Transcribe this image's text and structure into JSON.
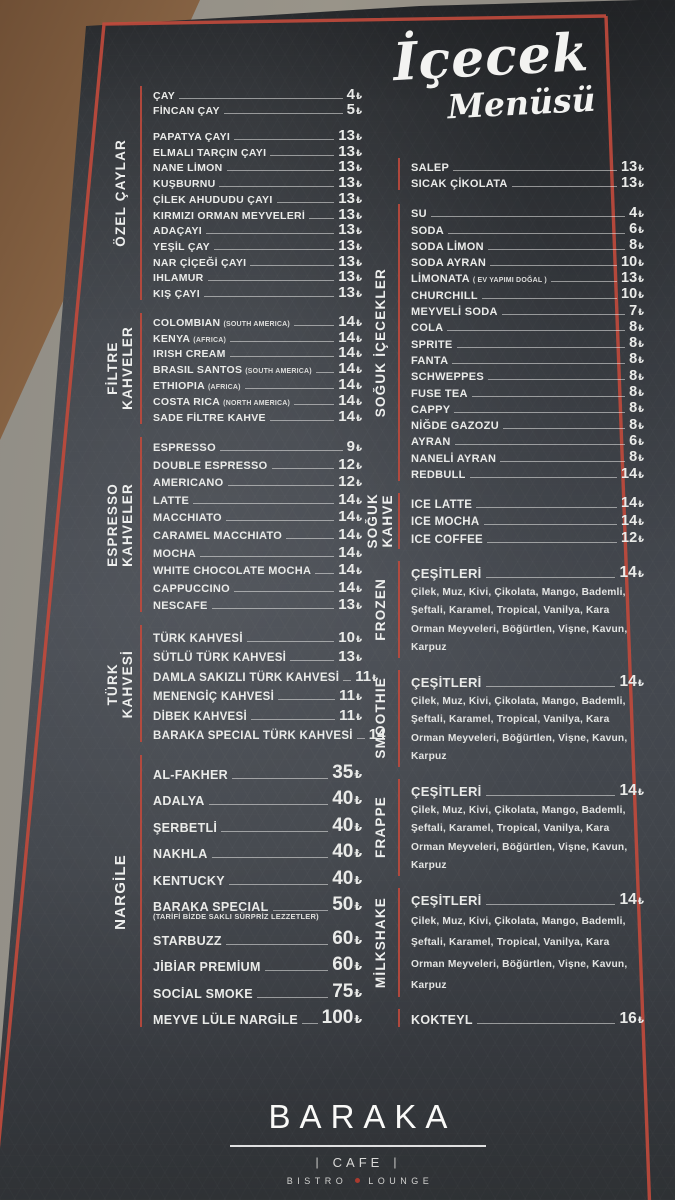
{
  "title": {
    "line1": "İçecek",
    "line2": "Menüsü"
  },
  "currency": "₺",
  "colors": {
    "accent_red": "#bf4a3c",
    "card_bg": "#3f4349",
    "text": "#eaebe9"
  },
  "left_sections": [
    {
      "label": "ÖZEL ÇAYLAR",
      "items": [
        {
          "name": "ÇAY",
          "price": "4"
        },
        {
          "name": "FİNCAN ÇAY",
          "price": "5"
        },
        {
          "name": "PAPATYA ÇAYI",
          "price": "13",
          "gap": true
        },
        {
          "name": "ELMALI TARÇIN ÇAYI",
          "price": "13"
        },
        {
          "name": "NANE LİMON",
          "price": "13"
        },
        {
          "name": "KUŞBURNU",
          "price": "13"
        },
        {
          "name": "ÇİLEK AHUDUDU ÇAYI",
          "price": "13"
        },
        {
          "name": "KIRMIZI ORMAN MEYVELERİ",
          "price": "13"
        },
        {
          "name": "ADAÇAYI",
          "price": "13"
        },
        {
          "name": "YEŞİL ÇAY",
          "price": "13"
        },
        {
          "name": "NAR ÇİÇEĞİ ÇAYI",
          "price": "13"
        },
        {
          "name": "IHLAMUR",
          "price": "13"
        },
        {
          "name": "KIŞ ÇAYI",
          "price": "13"
        }
      ]
    },
    {
      "label": "FİLTRE\nKAHVELER",
      "items": [
        {
          "name": "COLOMBIAN",
          "origin": "(SOUTH AMERICA)",
          "price": "14"
        },
        {
          "name": "KENYA",
          "origin": "(AFRICA)",
          "price": "14"
        },
        {
          "name": "IRISH CREAM",
          "price": "14"
        },
        {
          "name": "BRASIL SANTOS",
          "origin": "(SOUTH AMERICA)",
          "price": "14"
        },
        {
          "name": "ETHIOPIA",
          "origin": "(AFRICA)",
          "price": "14"
        },
        {
          "name": "COSTA RICA",
          "origin": "(NORTH AMERICA)",
          "price": "14"
        },
        {
          "name": "SADE FİLTRE KAHVE",
          "price": "14"
        }
      ]
    },
    {
      "label": "ESPRESSO\nKAHVELER",
      "items": [
        {
          "name": "ESPRESSO",
          "price": "9"
        },
        {
          "name": "DOUBLE ESPRESSO",
          "price": "12"
        },
        {
          "name": "AMERICANO",
          "price": "12"
        },
        {
          "name": "LATTE",
          "price": "14"
        },
        {
          "name": "MACCHIATO",
          "price": "14"
        },
        {
          "name": "CARAMEL MACCHIATO",
          "price": "14"
        },
        {
          "name": "MOCHA",
          "price": "14"
        },
        {
          "name": "WHITE CHOCOLATE MOCHA",
          "price": "14"
        },
        {
          "name": "CAPPUCCINO",
          "price": "14"
        },
        {
          "name": "NESCAFE",
          "price": "13"
        }
      ]
    },
    {
      "label": "TÜRK\nKAHVESİ",
      "items": [
        {
          "name": "TÜRK KAHVESİ",
          "price": "10"
        },
        {
          "name": "SÜTLÜ TÜRK KAHVESİ",
          "price": "13"
        },
        {
          "name": "DAMLA SAKIZLI TÜRK KAHVESİ",
          "price": "11"
        },
        {
          "name": "MENENGİÇ KAHVESİ",
          "price": "11"
        },
        {
          "name": "DİBEK KAHVESİ",
          "price": "11"
        },
        {
          "name": "BARAKA SPECIAL TÜRK KAHVESİ",
          "price": "14",
          "no_currency": true
        }
      ]
    },
    {
      "label": "NARGİLE",
      "items": [
        {
          "name": "AL-FAKHER",
          "price": "35"
        },
        {
          "name": "ADALYA",
          "price": "40"
        },
        {
          "name": "ŞERBETLİ",
          "price": "40"
        },
        {
          "name": "NAKHLA",
          "price": "40"
        },
        {
          "name": "KENTUCKY",
          "price": "40"
        },
        {
          "name": "BARAKA SPECIAL",
          "note": "(TARİFİ BİZDE SAKLI SÜRPRİZ LEZZETLER)",
          "price": "50"
        },
        {
          "name": "STARBUZZ",
          "price": "60"
        },
        {
          "name": "JİBİAR PREMİUM",
          "price": "60"
        },
        {
          "name": "SOCİAL SMOKE",
          "price": "75"
        },
        {
          "name": "MEYVE LÜLE NARGİLE",
          "price": "100"
        }
      ]
    }
  ],
  "right_sections": [
    {
      "label": "",
      "items": [
        {
          "name": "SALEP",
          "price": "13"
        },
        {
          "name": "SICAK ÇİKOLATA",
          "price": "13"
        }
      ]
    },
    {
      "label": "SOĞUK İÇECEKLER",
      "items": [
        {
          "name": "SU",
          "price": "4"
        },
        {
          "name": "SODA",
          "price": "6"
        },
        {
          "name": "SODA LİMON",
          "price": "8"
        },
        {
          "name": "SODA AYRAN",
          "price": "10"
        },
        {
          "name": "LİMONATA",
          "origin": "( EV YAPIMI DOĞAL )",
          "price": "13"
        },
        {
          "name": "CHURCHILL",
          "price": "10"
        },
        {
          "name": "MEYVELİ SODA",
          "price": "7"
        },
        {
          "name": "COLA",
          "price": "8"
        },
        {
          "name": "SPRITE",
          "price": "8"
        },
        {
          "name": "FANTA",
          "price": "8"
        },
        {
          "name": "SCHWEPPES",
          "price": "8"
        },
        {
          "name": "FUSE TEA",
          "price": "8"
        },
        {
          "name": "CAPPY",
          "price": "8"
        },
        {
          "name": "NİĞDE GAZOZU",
          "price": "8"
        },
        {
          "name": "AYRAN",
          "price": "6"
        },
        {
          "name": "NANELİ AYRAN",
          "price": "8"
        },
        {
          "name": "REDBULL",
          "price": "14"
        }
      ]
    },
    {
      "label": "SOĞUK\nKAHVE",
      "items": [
        {
          "name": "ICE LATTE",
          "price": "14"
        },
        {
          "name": "ICE MOCHA",
          "price": "14"
        },
        {
          "name": "ICE COFFEE",
          "price": "12"
        }
      ]
    },
    {
      "label": "FROZEN",
      "items": [
        {
          "name": "ÇEŞİTLERİ",
          "price": "14",
          "desc": "Çilek, Muz, Kivi, Çikolata, Mango, Bademli, Şeftali, Karamel, Tropical, Vanilya, Kara Orman Meyveleri, Böğürtlen, Vişne, Kavun, Karpuz"
        }
      ]
    },
    {
      "label": "SMOOTHIE",
      "items": [
        {
          "name": "ÇEŞİTLERİ",
          "price": "14",
          "desc": "Çilek, Muz, Kivi, Çikolata, Mango, Bademli, Şeftali, Karamel, Tropical, Vanilya, Kara Orman Meyveleri, Böğürtlen, Vişne, Kavun, Karpuz"
        }
      ]
    },
    {
      "label": "FRAPPE",
      "items": [
        {
          "name": "ÇEŞİTLERİ",
          "price": "14",
          "desc": "Çilek, Muz, Kivi, Çikolata, Mango, Bademli, Şeftali, Karamel, Tropical, Vanilya, Kara Orman Meyveleri, Böğürtlen, Vişne, Kavun, Karpuz"
        }
      ]
    },
    {
      "label": "MİLKSHAKE",
      "items": [
        {
          "name": "ÇEŞİTLERİ",
          "price": "14",
          "desc": "Çilek, Muz, Kivi, Çikolata, Mango, Bademli, Şeftali, Karamel, Tropical, Vanilya, Kara Orman Meyveleri, Böğürtlen, Vişne, Kavun, Karpuz"
        }
      ]
    },
    {
      "label": "",
      "items": [
        {
          "name": "KOKTEYL",
          "price": "16"
        }
      ]
    }
  ],
  "footer": {
    "brand": "BARAKA",
    "cafe": "CAFE",
    "bistro": "BISTRO",
    "lounge": "LOUNGE"
  }
}
